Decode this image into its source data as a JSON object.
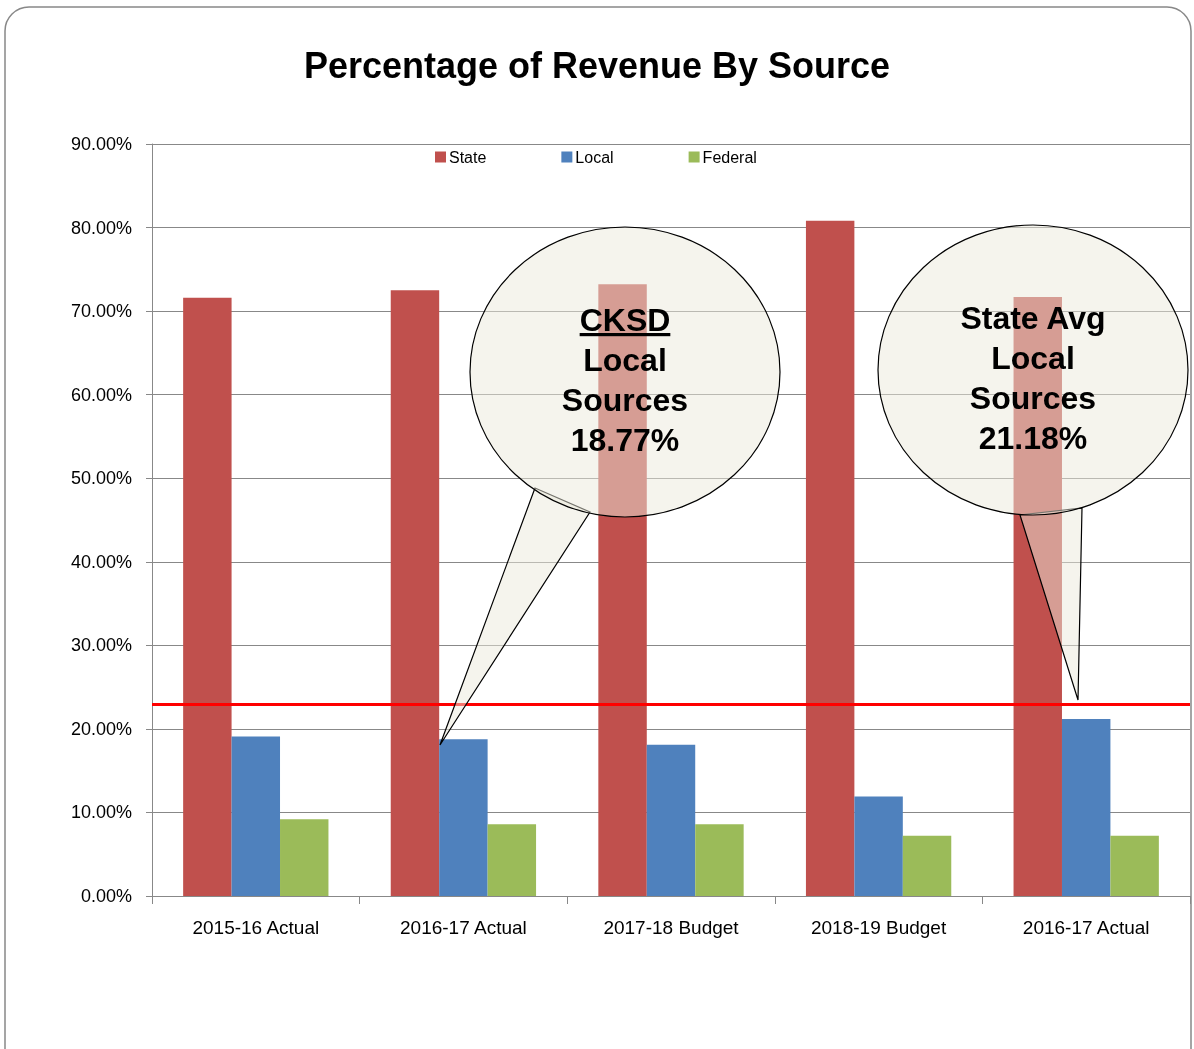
{
  "chart_data": {
    "type": "bar",
    "title": "Percentage of Revenue By Source",
    "categories": [
      "2015-16 Actual",
      "2016-17 Actual",
      "2017-18 Budget",
      "2018-19 Budget",
      "2016-17 Actual"
    ],
    "series": [
      {
        "name": "State",
        "color": "#c0504d",
        "values": [
          71.6,
          72.5,
          73.2,
          80.8,
          71.7
        ]
      },
      {
        "name": "Local",
        "color": "#4f81bd",
        "values": [
          19.1,
          18.77,
          18.1,
          11.9,
          21.18
        ]
      },
      {
        "name": "Federal",
        "color": "#9bbb59",
        "values": [
          9.2,
          8.6,
          8.6,
          7.2,
          7.2
        ]
      }
    ],
    "ylim": [
      0,
      90
    ],
    "yticks": [
      {
        "value": 0,
        "label": "0.00%"
      },
      {
        "value": 10,
        "label": "10.00%"
      },
      {
        "value": 20,
        "label": "20.00%"
      },
      {
        "value": 30,
        "label": "30.00%"
      },
      {
        "value": 40,
        "label": "40.00%"
      },
      {
        "value": 50,
        "label": "50.00%"
      },
      {
        "value": 60,
        "label": "60.00%"
      },
      {
        "value": 70,
        "label": "70.00%"
      },
      {
        "value": 80,
        "label": "80.00%"
      },
      {
        "value": 90,
        "label": "90.00%"
      }
    ],
    "grid": "y",
    "legend": "top",
    "ref_lines": [
      {
        "axis": "y",
        "value": 23,
        "color": "#ff0000"
      }
    ],
    "annotations": [
      "CKSD\nLocal\nSources\n18.77%",
      "State Avg\nLocal\nSources\n21.18%"
    ]
  }
}
